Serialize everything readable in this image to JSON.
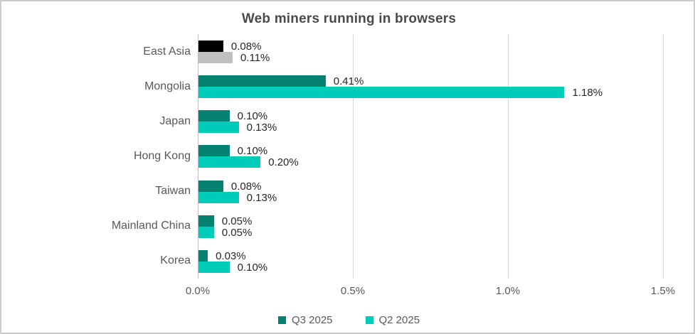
{
  "title": "Web miners running in browsers",
  "legend": {
    "items": [
      {
        "label": "Q3 2025",
        "color": "#048171"
      },
      {
        "label": "Q2 2025",
        "color": "#00CDB9"
      }
    ]
  },
  "colors": {
    "q3_bar": "#048171",
    "q2_bar": "#00CDB9",
    "east_asia_q3_bar": "#000000",
    "east_asia_q2_bar": "#BFBFBF",
    "gridline": "#d9d9d9",
    "axis_line": "#bfbfbf",
    "title_text": "#4a4a4a",
    "label_text": "#595959",
    "value_text": "#262626"
  },
  "chart_data": {
    "type": "bar",
    "orientation": "horizontal",
    "title": "Web miners running in browsers",
    "categories": [
      "East Asia",
      "Mongolia",
      "Japan",
      "Hong Kong",
      "Taiwan",
      "Mainland China",
      "Korea"
    ],
    "series": [
      {
        "name": "Q3 2025",
        "color": "#048171",
        "values": [
          0.08,
          0.41,
          0.1,
          0.1,
          0.08,
          0.05,
          0.03
        ],
        "labels": [
          "0.08%",
          "0.41%",
          "0.10%",
          "0.10%",
          "0.08%",
          "0.05%",
          "0.03%"
        ]
      },
      {
        "name": "Q2 2025",
        "color": "#00CDB9",
        "values": [
          0.11,
          1.18,
          0.13,
          0.2,
          0.13,
          0.05,
          0.1
        ],
        "labels": [
          "0.11%",
          "1.18%",
          "0.13%",
          "0.20%",
          "0.13%",
          "0.05%",
          "0.10%"
        ]
      }
    ],
    "category_color_overrides": {
      "East Asia": [
        "#000000",
        "#BFBFBF"
      ]
    },
    "xlim": [
      0,
      1.5
    ],
    "x_ticks": [
      {
        "value": 0.0,
        "label": "0.0%"
      },
      {
        "value": 0.5,
        "label": "0.5%"
      },
      {
        "value": 1.0,
        "label": "1.0%"
      },
      {
        "value": 1.5,
        "label": "1.5%"
      }
    ],
    "grid": "vertical",
    "legend_position": "bottom"
  }
}
